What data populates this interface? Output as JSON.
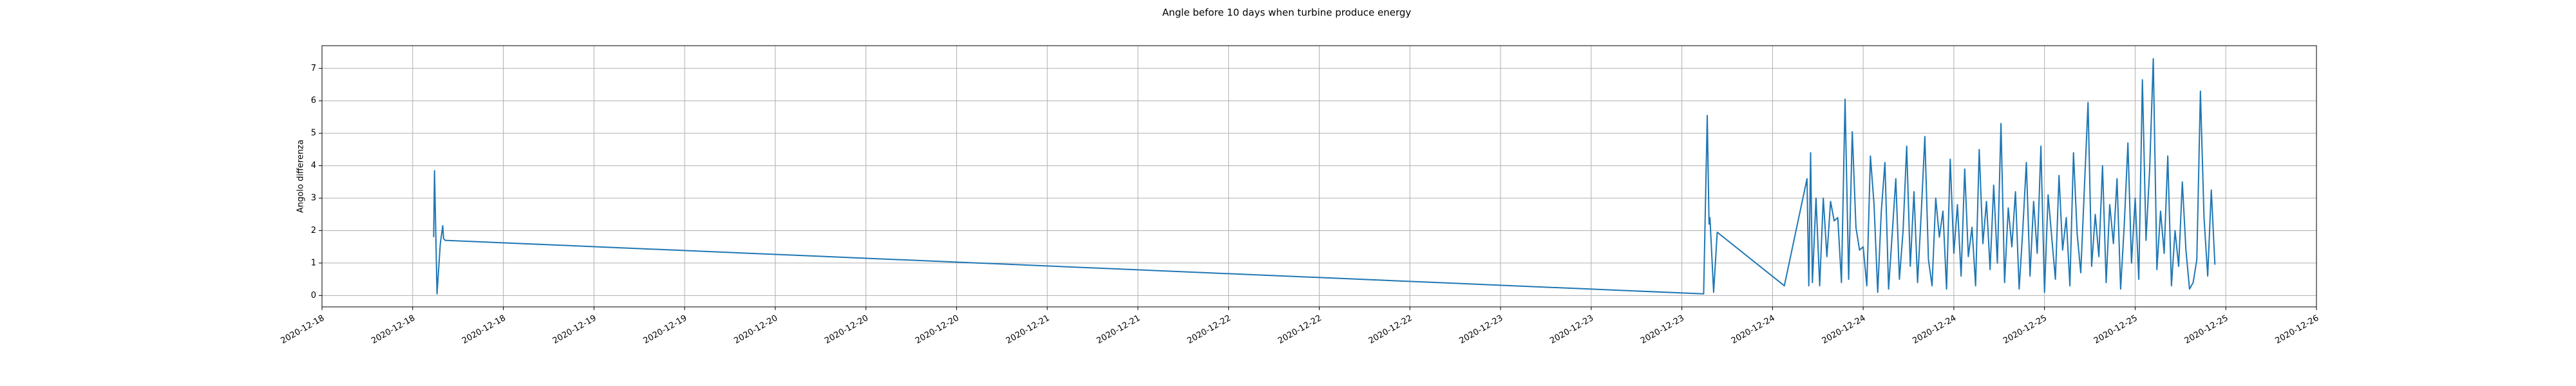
{
  "chart_data": {
    "type": "line",
    "title": "Angle before 10 days when turbine produce energy",
    "y_label": "Angolo differenza",
    "grid": true,
    "xlim": [
      0,
      22
    ],
    "ylim": [
      -0.35,
      7.7
    ],
    "yticks": [
      0,
      1,
      2,
      3,
      4,
      5,
      6,
      7
    ],
    "xticks": [
      {
        "value": 0,
        "label": "2020-12-18"
      },
      {
        "value": 1,
        "label": "2020-12-18"
      },
      {
        "value": 2,
        "label": "2020-12-18"
      },
      {
        "value": 3,
        "label": "2020-12-19"
      },
      {
        "value": 4,
        "label": "2020-12-19"
      },
      {
        "value": 5,
        "label": "2020-12-20"
      },
      {
        "value": 6,
        "label": "2020-12-20"
      },
      {
        "value": 7,
        "label": "2020-12-20"
      },
      {
        "value": 8,
        "label": "2020-12-21"
      },
      {
        "value": 9,
        "label": "2020-12-21"
      },
      {
        "value": 10,
        "label": "2020-12-22"
      },
      {
        "value": 11,
        "label": "2020-12-22"
      },
      {
        "value": 12,
        "label": "2020-12-22"
      },
      {
        "value": 13,
        "label": "2020-12-23"
      },
      {
        "value": 14,
        "label": "2020-12-23"
      },
      {
        "value": 15,
        "label": "2020-12-23"
      },
      {
        "value": 16,
        "label": "2020-12-24"
      },
      {
        "value": 17,
        "label": "2020-12-24"
      },
      {
        "value": 18,
        "label": "2020-12-24"
      },
      {
        "value": 19,
        "label": "2020-12-25"
      },
      {
        "value": 20,
        "label": "2020-12-25"
      },
      {
        "value": 21,
        "label": "2020-12-25"
      },
      {
        "value": 22,
        "label": "2020-12-26"
      }
    ],
    "series": [
      {
        "color": "#1f77b4",
        "x": [
          1.232,
          1.241,
          1.269,
          1.305,
          1.332,
          1.341,
          1.359,
          15.24,
          15.28,
          15.3,
          15.31,
          15.35,
          15.39,
          16.13,
          16.38,
          16.4,
          16.42,
          16.44,
          16.48,
          16.52,
          16.56,
          16.6,
          16.64,
          16.68,
          16.72,
          16.76,
          16.8,
          16.84,
          16.88,
          16.92,
          16.96,
          17,
          17.04,
          17.08,
          17.12,
          17.16,
          17.2,
          17.24,
          17.28,
          17.32,
          17.36,
          17.4,
          17.44,
          17.48,
          17.52,
          17.56,
          17.6,
          17.64,
          17.68,
          17.72,
          17.76,
          17.8,
          17.84,
          17.88,
          17.92,
          17.96,
          18,
          18.04,
          18.08,
          18.12,
          18.16,
          18.2,
          18.24,
          18.28,
          18.32,
          18.36,
          18.4,
          18.44,
          18.48,
          18.52,
          18.56,
          18.6,
          18.64,
          18.68,
          18.72,
          18.76,
          18.8,
          18.84,
          18.88,
          18.92,
          18.96,
          19,
          19.04,
          19.08,
          19.12,
          19.16,
          19.2,
          19.24,
          19.28,
          19.32,
          19.36,
          19.4,
          19.44,
          19.48,
          19.52,
          19.56,
          19.6,
          19.64,
          19.68,
          19.72,
          19.76,
          19.8,
          19.84,
          19.88,
          19.92,
          19.96,
          20,
          20.04,
          20.08,
          20.12,
          20.16,
          20.2,
          20.24,
          20.28,
          20.32,
          20.36,
          20.4,
          20.44,
          20.48,
          20.52,
          20.56,
          20.6,
          20.64,
          20.68,
          20.72,
          20.76,
          20.8,
          20.84,
          20.88
        ],
        "values": [
          1.8,
          3.85,
          0.05,
          1.6,
          2.15,
          1.75,
          1.7,
          0.05,
          5.55,
          2.2,
          2.4,
          0.1,
          1.95,
          0.3,
          3.6,
          0.3,
          4.4,
          0.4,
          3.0,
          0.3,
          3.0,
          1.2,
          2.9,
          2.3,
          2.4,
          0.4,
          6.05,
          0.5,
          5.05,
          2.1,
          1.4,
          1.5,
          0.3,
          4.3,
          2.8,
          0.1,
          2.6,
          4.1,
          0.2,
          1.9,
          3.6,
          0.5,
          2.0,
          4.6,
          0.9,
          3.2,
          0.4,
          2.5,
          4.9,
          1.1,
          0.3,
          3.0,
          1.8,
          2.6,
          0.2,
          4.2,
          1.3,
          2.8,
          0.6,
          3.9,
          1.2,
          2.1,
          0.3,
          4.5,
          1.6,
          2.9,
          0.8,
          3.4,
          1.0,
          5.3,
          0.4,
          2.7,
          1.5,
          3.2,
          0.2,
          2.0,
          4.1,
          0.6,
          2.9,
          1.3,
          4.6,
          0.1,
          3.1,
          1.8,
          0.5,
          3.7,
          1.4,
          2.4,
          0.3,
          4.4,
          1.9,
          0.7,
          3.3,
          5.95,
          0.9,
          2.5,
          1.2,
          4.0,
          0.4,
          2.8,
          1.6,
          3.6,
          0.2,
          2.2,
          4.7,
          1.0,
          3.0,
          0.5,
          6.65,
          1.7,
          3.9,
          7.3,
          0.8,
          2.6,
          1.3,
          4.3,
          0.3,
          2.0,
          0.9,
          3.5,
          1.4,
          0.2,
          0.4,
          1.1,
          6.3,
          2.4,
          0.6,
          3.25,
          0.95
        ]
      }
    ]
  }
}
